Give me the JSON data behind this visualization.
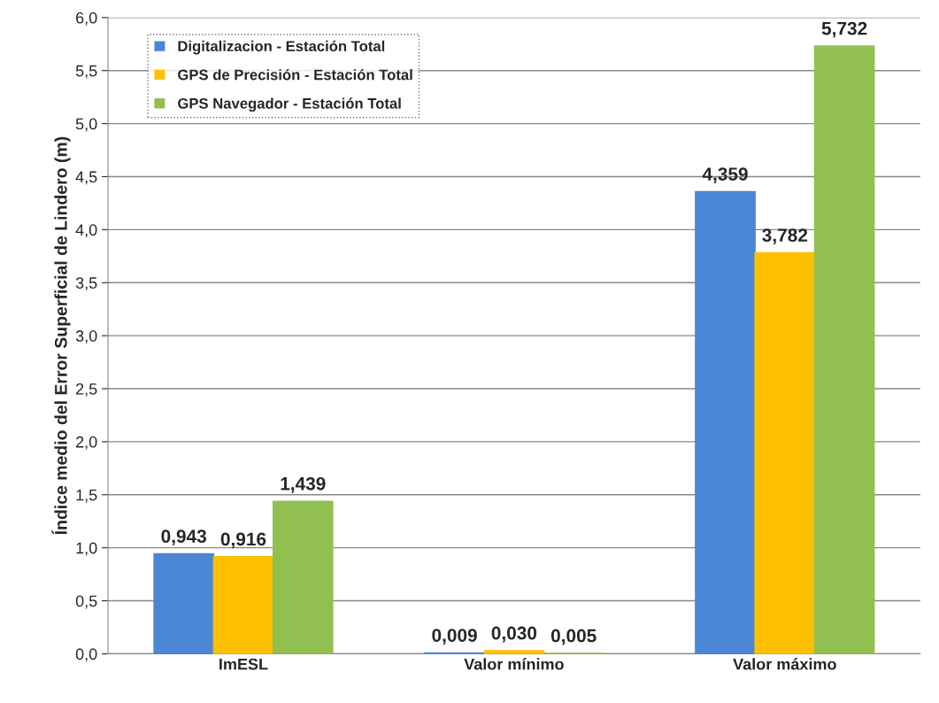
{
  "chart_data": {
    "type": "bar",
    "ylabel": "Índice medio del Error Superficial de Lindero (m)",
    "categories": [
      "ImESL",
      "Valor mínimo",
      "Valor máximo"
    ],
    "series": [
      {
        "name": "Digitalizacion - Estación Total",
        "color": "#4a86d4",
        "values": [
          0.943,
          0.009,
          4.359
        ],
        "value_labels": [
          "0,943",
          "0,009",
          "4,359"
        ]
      },
      {
        "name": "GPS de Precisión - Estación Total",
        "color": "#ffc000",
        "values": [
          0.916,
          0.03,
          3.782
        ],
        "value_labels": [
          "0,916",
          "0,030",
          "3,782"
        ]
      },
      {
        "name": "GPS Navegador - Estación Total",
        "color": "#92c050",
        "values": [
          1.439,
          0.005,
          5.732
        ],
        "value_labels": [
          "1,439",
          "0,005",
          "5,732"
        ]
      }
    ],
    "ylim": [
      0,
      6
    ],
    "yticks": [
      {
        "value": 0,
        "label": "0,0"
      },
      {
        "value": 0.5,
        "label": "0,5"
      },
      {
        "value": 1,
        "label": "1,0"
      },
      {
        "value": 1.5,
        "label": "1,5"
      },
      {
        "value": 2,
        "label": "2,0"
      },
      {
        "value": 2.5,
        "label": "2,5"
      },
      {
        "value": 3,
        "label": "3,0"
      },
      {
        "value": 3.5,
        "label": "3,5"
      },
      {
        "value": 4,
        "label": "4,0"
      },
      {
        "value": 4.5,
        "label": "4,5"
      },
      {
        "value": 5,
        "label": "5,0"
      },
      {
        "value": 5.5,
        "label": "5,5"
      },
      {
        "value": 6,
        "label": "6,0"
      }
    ],
    "grid": "y",
    "legend": "top left"
  }
}
